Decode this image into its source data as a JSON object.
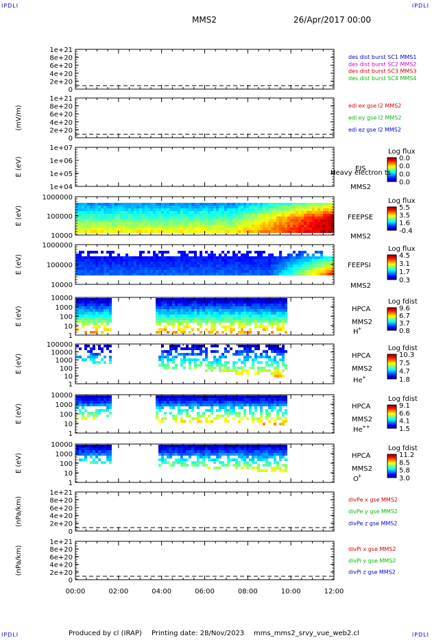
{
  "corner_tags": [
    "IPDLI",
    "IPDLI",
    "IPDLI",
    "IPDLI"
  ],
  "header": {
    "title": "MMS2",
    "date": "26/Apr/2017 00:00"
  },
  "footer": {
    "produced": "Produced by cl (IRAP)",
    "printing": "Printing date: 28/Nov/2023",
    "file": "mms_mms2_srvy_vue_web2.cl"
  },
  "colors": {
    "blue": "#0000cc",
    "magenta": "#cc00cc",
    "red": "#cc0000",
    "green": "#00bb00"
  },
  "chart_data": [
    {
      "type": "line",
      "ylabel": "",
      "ticks": [
        "1e+21",
        "8e+20",
        "6e+20",
        "4e+20",
        "2e+20",
        "0"
      ],
      "legend": [
        {
          "text": "des dist burst SC1 MMS1",
          "color": "#0000cc"
        },
        {
          "text": "des dist burst SC2 MMS2",
          "color": "#cc00cc"
        },
        {
          "text": "des dist burst SC3 MMS3",
          "color": "#cc0000"
        },
        {
          "text": "des dist burst SC4 MMS4",
          "color": "#00bb00"
        }
      ]
    },
    {
      "type": "line",
      "ylabel": "(mV/m)",
      "ticks": [
        "1e+21",
        "8e+20",
        "6e+20",
        "4e+20",
        "2e+20",
        "0"
      ],
      "legend": [
        {
          "text": "edi ex gse l2 MMS2",
          "color": "#cc0000"
        },
        {
          "text": "edi ey gse l2 MMS2",
          "color": "#00bb00"
        },
        {
          "text": "edi ez gse l2 MMS2",
          "color": "#0000cc"
        }
      ]
    },
    {
      "type": "heatmap",
      "ylabel": "E (eV)",
      "ticks": [
        "1e+07",
        "1e+06",
        "1e+05",
        "1e+04"
      ],
      "labels": [
        "EIS",
        "Heavy electron ts",
        "MMS2"
      ],
      "cbar_title": "Log flux",
      "cbar_ticks": [
        "0.0",
        "0.0",
        "0.0",
        "0.0"
      ]
    },
    {
      "type": "heatmap",
      "ylabel": "E (eV)",
      "ticks": [
        "1000000",
        "100000",
        "10000"
      ],
      "labels": [
        "FEEPSE",
        "MMS2"
      ],
      "cbar_title": "Log flux",
      "cbar_ticks": [
        "5.5",
        "3.5",
        "1.6",
        "-0.4"
      ]
    },
    {
      "type": "heatmap",
      "ylabel": "E (eV)",
      "ticks": [
        "1000000",
        "100000",
        "10000"
      ],
      "labels": [
        "FEEPSI",
        "MMS2"
      ],
      "cbar_title": "Log flux",
      "cbar_ticks": [
        "4.5",
        "3.1",
        "1.7",
        "0.3"
      ]
    },
    {
      "type": "heatmap",
      "ylabel": "E (eV)",
      "ticks": [
        "10000",
        "1000",
        "100",
        "10",
        "1"
      ],
      "labels": [
        "HPCA",
        "MMS2"
      ],
      "species": "H",
      "sup": "+",
      "cbar_title": "Log fdist",
      "cbar_ticks": [
        "9.6",
        "6.7",
        "3.7",
        "0.8"
      ]
    },
    {
      "type": "heatmap",
      "ylabel": "E (eV)",
      "ticks": [
        "100000",
        "10000",
        "1000",
        "100",
        "10",
        "1"
      ],
      "labels": [
        "HPCA",
        "MMS2"
      ],
      "species": "He",
      "sup": "+",
      "cbar_title": "Log fdist",
      "cbar_ticks": [
        "10.3",
        "7.5",
        "4.7",
        "1.8"
      ]
    },
    {
      "type": "heatmap",
      "ylabel": "E (eV)",
      "ticks": [
        "10000",
        "1000",
        "100",
        "10",
        "1"
      ],
      "labels": [
        "HPCA",
        "MMS2"
      ],
      "species": "He",
      "sup": "++",
      "cbar_title": "Log fdist",
      "cbar_ticks": [
        "9.1",
        "6.6",
        "4.1",
        "1.5"
      ]
    },
    {
      "type": "heatmap",
      "ylabel": "E (eV)",
      "ticks": [
        "10000",
        "1000",
        "100",
        "10",
        "1"
      ],
      "labels": [
        "HPCA",
        "MMS2"
      ],
      "species": "O",
      "sup": "+",
      "cbar_title": "Log fdist",
      "cbar_ticks": [
        "11.2",
        "8.5",
        "5.8",
        "3.0"
      ]
    },
    {
      "type": "line",
      "ylabel": "(nPa/km)",
      "ticks": [
        "1e+21",
        "8e+20",
        "6e+20",
        "4e+20",
        "2e+20",
        "0"
      ],
      "legend": [
        {
          "text": "divPe x gse MMS2",
          "color": "#cc0000"
        },
        {
          "text": "divPe y gse MMS2",
          "color": "#00bb00"
        },
        {
          "text": "divPe z gse MMS2",
          "color": "#0000cc"
        }
      ]
    },
    {
      "type": "line",
      "ylabel": "(nPa/km)",
      "ticks": [
        "1e+21",
        "8e+20",
        "6e+20",
        "4e+20",
        "2e+20",
        "0"
      ],
      "legend": [
        {
          "text": "divPi x gse MMS2",
          "color": "#cc0000"
        },
        {
          "text": "divPi y gse MMS2",
          "color": "#00bb00"
        },
        {
          "text": "divPi z gse MMS2",
          "color": "#0000cc"
        }
      ]
    }
  ],
  "time_axis": {
    "ticks": [
      "00:00",
      "02:00",
      "04:00",
      "06:00",
      "08:00",
      "10:00",
      "12:00"
    ]
  }
}
